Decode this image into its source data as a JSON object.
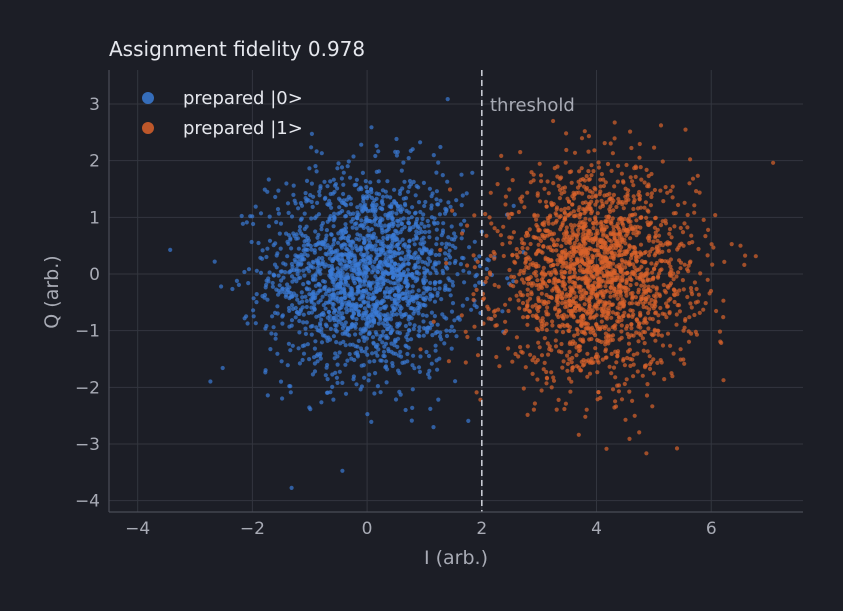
{
  "chart_data": {
    "type": "scatter",
    "title": "Assignment fidelity 0.978",
    "xlabel": "I (arb.)",
    "ylabel": "Q (arb.)",
    "xlim": [
      -4.5,
      7.6
    ],
    "ylim": [
      -4.2,
      3.6
    ],
    "xticks": [
      -4,
      -2,
      0,
      2,
      4,
      6
    ],
    "yticks": [
      -4,
      -3,
      -2,
      -1,
      0,
      1,
      2,
      3
    ],
    "xtick_labels": [
      "−4",
      "−2",
      "0",
      "2",
      "4",
      "6"
    ],
    "ytick_labels": [
      "−4",
      "−3",
      "−2",
      "−1",
      "0",
      "1",
      "2",
      "3"
    ],
    "grid": true,
    "legend_position": "top-left",
    "threshold": {
      "x": 2,
      "label": "threshold",
      "color": "#c9ccd4"
    },
    "series": [
      {
        "name": "prepared |0>",
        "color": "#3a7bd5",
        "center": [
          0.0,
          0.0
        ],
        "std": [
          0.85,
          0.9
        ],
        "n_points": 2000
      },
      {
        "name": "prepared |1>",
        "color": "#d9622b",
        "center": [
          4.0,
          0.0
        ],
        "std": [
          0.85,
          0.9
        ],
        "n_points": 2000
      }
    ]
  }
}
